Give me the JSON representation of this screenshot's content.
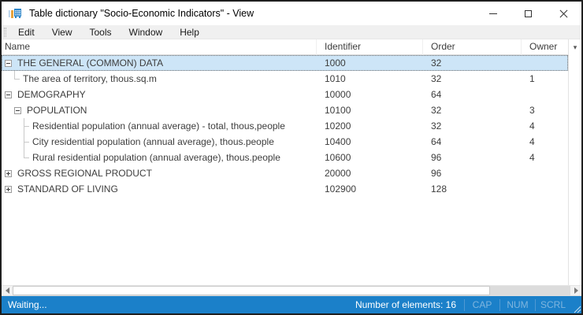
{
  "window": {
    "title": "Table dictionary \"Socio-Economic Indicators\" - View"
  },
  "menu": {
    "items": [
      "Edit",
      "View",
      "Tools",
      "Window",
      "Help"
    ]
  },
  "table": {
    "columns": [
      "Name",
      "Identifier",
      "Order",
      "Owner"
    ],
    "rows": [
      {
        "name": "THE GENERAL (COMMON) DATA",
        "identifier": "1000",
        "order": "32",
        "owner": "",
        "level": 0,
        "expander": "minus",
        "connector": null,
        "selected": true
      },
      {
        "name": "The area of territory, thous.sq.m",
        "identifier": "1010",
        "order": "32",
        "owner": "1",
        "level": 1,
        "expander": null,
        "connector": "end",
        "selected": false
      },
      {
        "name": "DEMOGRAPHY",
        "identifier": "10000",
        "order": "64",
        "owner": "",
        "level": 0,
        "expander": "minus",
        "connector": null,
        "selected": false
      },
      {
        "name": "POPULATION",
        "identifier": "10100",
        "order": "32",
        "owner": "3",
        "level": 1,
        "expander": "minus",
        "connector": null,
        "selected": false
      },
      {
        "name": "Residential population (annual average) - total, thous,people",
        "identifier": "10200",
        "order": "32",
        "owner": "4",
        "level": 2,
        "expander": null,
        "connector": "mid",
        "selected": false
      },
      {
        "name": "City residential population (annual average), thous.people",
        "identifier": "10400",
        "order": "64",
        "owner": "4",
        "level": 2,
        "expander": null,
        "connector": "mid",
        "selected": false
      },
      {
        "name": "Rural residential population (annual average), thous.people",
        "identifier": "10600",
        "order": "96",
        "owner": "4",
        "level": 2,
        "expander": null,
        "connector": "end",
        "selected": false
      },
      {
        "name": "GROSS REGIONAL PRODUCT",
        "identifier": "20000",
        "order": "96",
        "owner": "",
        "level": 0,
        "expander": "plus",
        "connector": null,
        "selected": false
      },
      {
        "name": "STANDARD OF LIVING",
        "identifier": "102900",
        "order": "128",
        "owner": "",
        "level": 0,
        "expander": "plus",
        "connector": null,
        "selected": false
      }
    ]
  },
  "status": {
    "left": "Waiting...",
    "elements": "Number of elements: 16",
    "indicators": [
      "CAP",
      "NUM",
      "SCRL"
    ]
  },
  "colors": {
    "statusbar_blue": "#1b80c9",
    "selection_blue": "#cde5f7",
    "titlebar": "#ffffff",
    "menubar": "#f0f0f0",
    "icon_blue": "#2e86c9",
    "icon_orange": "#e8a33d"
  }
}
